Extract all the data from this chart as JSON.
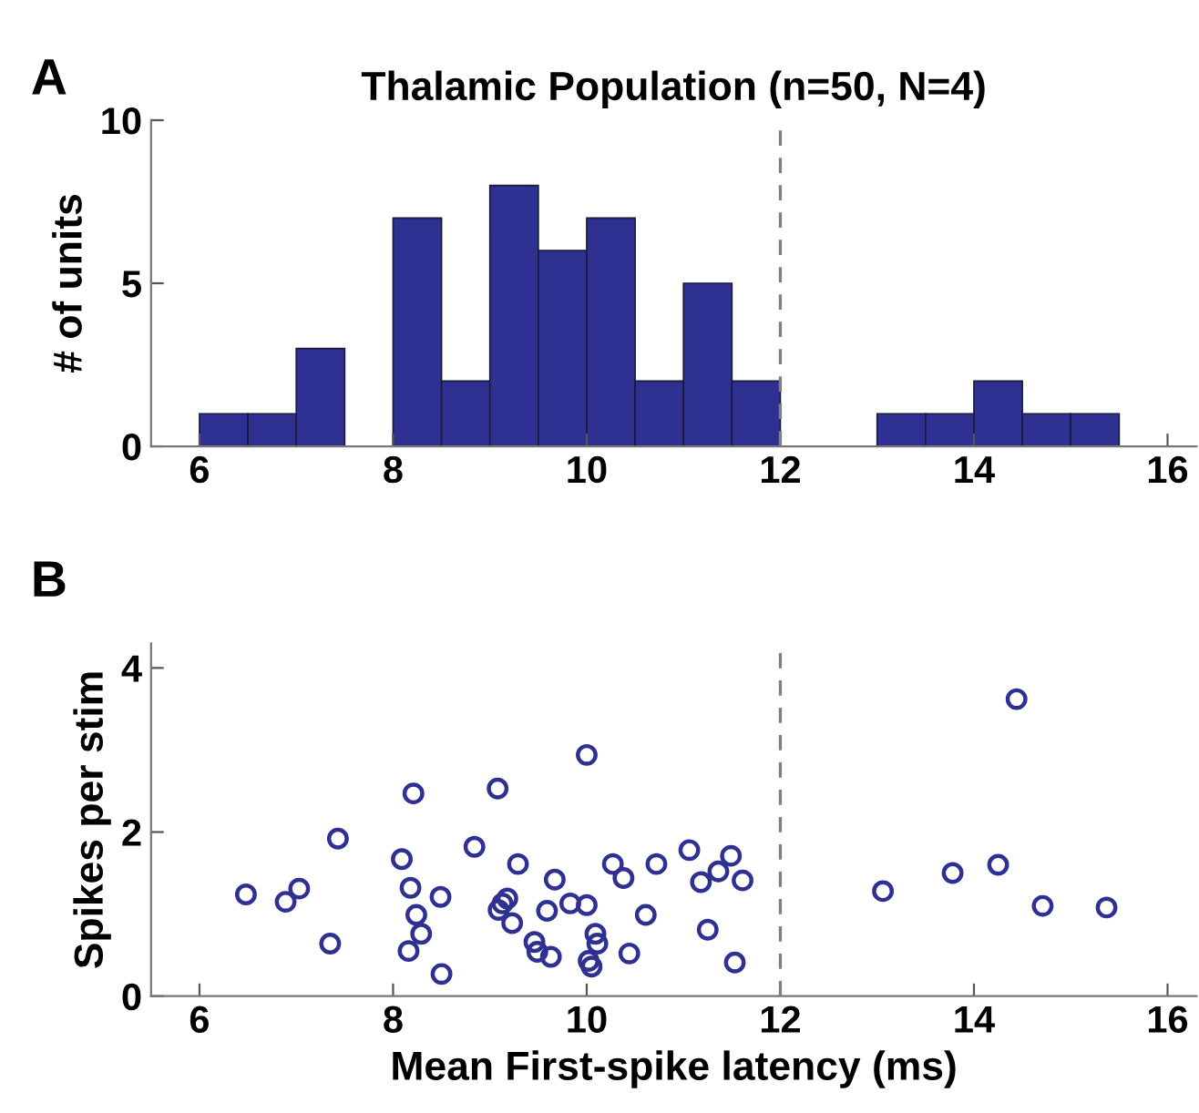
{
  "chart_data": [
    {
      "type": "histogram",
      "title": "Thalamic Population (n=50, N=4)",
      "ylabel": "# of units",
      "annotations": [
        "A"
      ],
      "bins": [
        6,
        6.5,
        7,
        7.5,
        8,
        8.5,
        9,
        9.5,
        10,
        10.5,
        11,
        11.5,
        12,
        12.5,
        13,
        13.5,
        14,
        14.5,
        15,
        15.5
      ],
      "values": [
        1,
        1,
        3,
        0,
        7,
        2,
        8,
        6,
        7,
        2,
        5,
        2,
        0,
        0,
        1,
        1,
        2,
        1,
        1
      ],
      "color": "#2e3192",
      "xlim": [
        5.5,
        16.3
      ],
      "xticks": [
        6,
        8,
        10,
        12,
        14,
        16
      ],
      "ylim": [
        0,
        10
      ],
      "yticks": [
        0,
        5,
        10
      ],
      "ref_lines": [
        {
          "axis": "x",
          "value": 12,
          "color": "#808080",
          "line_style": "dashed"
        }
      ],
      "grid": false,
      "legend": false
    },
    {
      "type": "scatter",
      "xlabel": "Mean First-spike latency (ms)",
      "ylabel": "Spikes per stim",
      "annotations": [
        "B"
      ],
      "marker": "circle",
      "series": [
        {
          "color": "#2e3192",
          "x": [
            6.48,
            6.89,
            7.03,
            7.35,
            7.43,
            8.09,
            8.21,
            8.18,
            8.24,
            8.29,
            8.16,
            8.49,
            8.5,
            8.84,
            9.08,
            9.29,
            9.18,
            9.13,
            9.09,
            9.23,
            9.46,
            9.49,
            9.63,
            9.59,
            9.67,
            9.83,
            10.0,
            10.0,
            10.09,
            10.11,
            10.02,
            10.05,
            10.27,
            10.38,
            10.44,
            10.61,
            10.72,
            11.06,
            11.18,
            11.36,
            11.49,
            11.61,
            11.25,
            11.53,
            13.06,
            13.78,
            14.25,
            14.44,
            14.71,
            15.37
          ],
          "values": [
            1.24,
            1.15,
            1.31,
            0.64,
            1.92,
            1.67,
            2.47,
            1.32,
            0.99,
            0.76,
            0.55,
            1.21,
            0.27,
            1.82,
            2.53,
            1.61,
            1.19,
            1.13,
            1.05,
            0.89,
            0.66,
            0.54,
            0.48,
            1.04,
            1.42,
            1.13,
            1.11,
            2.94,
            0.76,
            0.64,
            0.43,
            0.36,
            1.61,
            1.44,
            0.52,
            0.99,
            1.61,
            1.78,
            1.39,
            1.52,
            1.71,
            1.41,
            0.81,
            0.41,
            1.28,
            1.5,
            1.6,
            3.62,
            1.1,
            1.08
          ]
        }
      ],
      "xlim": [
        5.5,
        16.3
      ],
      "xticks": [
        6,
        8,
        10,
        12,
        14,
        16
      ],
      "ylim": [
        0,
        4.3
      ],
      "yticks": [
        0,
        2,
        4
      ],
      "ref_lines": [
        {
          "axis": "x",
          "value": 12,
          "color": "#808080",
          "line_style": "dashed"
        }
      ],
      "grid": false,
      "legend": false
    }
  ]
}
